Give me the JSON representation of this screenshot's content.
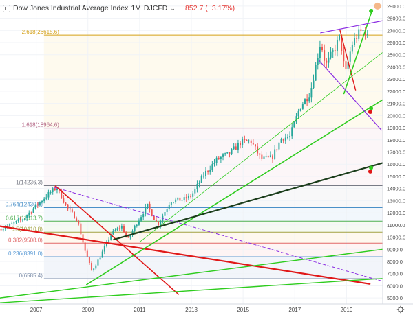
{
  "header": {
    "title": "Dow Jones Industrial Average Index",
    "interval": "1M",
    "symbol": "DJCFD",
    "change": "−852.7 (−3.17%)"
  },
  "colors": {
    "up": "#26a69a",
    "down": "#ef5350",
    "fib_1": "#787b86",
    "fib_0764": "#4a90c8",
    "fib_0618": "#4caf50",
    "fib_05": "#a0a040",
    "fib_0382": "#e06666",
    "fib_0236": "#5c9bd5",
    "fib_0": "#7e8faa",
    "fib_2618": "#d4a017",
    "fib_1618": "#b06080",
    "trend_red": "#e01818",
    "trend_green": "#2ecc1e",
    "trend_black": "#1b3d1b",
    "trend_purple": "#8a2be2",
    "marker_orange": "#f5b88a"
  },
  "chart_data": {
    "type": "candlestick",
    "title": "Dow Jones Industrial Average Index",
    "x_ticks": [
      "2007",
      "2009",
      "2011",
      "2013",
      "2015",
      "2017",
      "2019"
    ],
    "y_ticks": [
      "29000.0",
      "28000.0",
      "27000.0",
      "26000.0",
      "25000.0",
      "24000.0",
      "23000.0",
      "22000.0",
      "21000.0",
      "20000.0",
      "19000.0",
      "18000.0",
      "17000.0",
      "16000.0",
      "15000.0",
      "14000.0",
      "13000.0",
      "12000.0",
      "11000.0",
      "10000.0",
      "9000.0",
      "8000.0",
      "7000.0",
      "6000.0",
      "5000.0"
    ],
    "xlim": [
      2005.6,
      2020.4
    ],
    "ylim": [
      4500,
      29500
    ],
    "fib_levels": [
      {
        "label": "0(6585.4)",
        "value": 6585.4,
        "color_key": "fib_0"
      },
      {
        "label": "0.236(8391.0)",
        "value": 8391.0,
        "color_key": "fib_0236"
      },
      {
        "label": "0.382(9508.0)",
        "value": 9508.0,
        "color_key": "fib_0382"
      },
      {
        "label": "0.5(10410.8)",
        "value": 10410.8,
        "color_key": "fib_05"
      },
      {
        "label": "0.618(11313.7)",
        "value": 11313.7,
        "color_key": "fib_0618"
      },
      {
        "label": "0.764(12430.5)",
        "value": 12430.5,
        "color_key": "fib_0764"
      },
      {
        "label": "1(14236.3)",
        "value": 14236.3,
        "color_key": "fib_1"
      },
      {
        "label": "1.618(18964.6)",
        "value": 18964.6,
        "color_key": "fib_1618"
      },
      {
        "label": "2.618(26615.6)",
        "value": 26615.6,
        "color_key": "fib_2618"
      }
    ],
    "anchors": [
      [
        2005.6,
        10700
      ],
      [
        2006.0,
        11000
      ],
      [
        2006.5,
        11500
      ],
      [
        2007.0,
        12600
      ],
      [
        2007.5,
        13600
      ],
      [
        2007.8,
        14100
      ],
      [
        2008.2,
        12400
      ],
      [
        2008.6,
        11400
      ],
      [
        2008.9,
        8800
      ],
      [
        2009.15,
        7200
      ],
      [
        2009.5,
        8500
      ],
      [
        2009.9,
        10300
      ],
      [
        2010.3,
        10900
      ],
      [
        2010.55,
        9800
      ],
      [
        2010.9,
        11200
      ],
      [
        2011.3,
        12600
      ],
      [
        2011.7,
        11000
      ],
      [
        2012.2,
        13000
      ],
      [
        2012.7,
        13100
      ],
      [
        2013.0,
        13400
      ],
      [
        2013.5,
        15200
      ],
      [
        2014.0,
        16400
      ],
      [
        2014.5,
        16900
      ],
      [
        2014.9,
        17800
      ],
      [
        2015.3,
        17900
      ],
      [
        2015.7,
        16400
      ],
      [
        2016.1,
        16500
      ],
      [
        2016.5,
        18200
      ],
      [
        2016.8,
        18200
      ],
      [
        2017.2,
        20700
      ],
      [
        2017.6,
        21900
      ],
      [
        2018.0,
        26100
      ],
      [
        2018.2,
        24100
      ],
      [
        2018.5,
        25300
      ],
      [
        2018.75,
        26500
      ],
      [
        2018.95,
        23300
      ],
      [
        2019.2,
        25800
      ],
      [
        2019.45,
        26700
      ],
      [
        2019.7,
        27100
      ],
      [
        2019.85,
        26100
      ]
    ],
    "trendlines": [
      {
        "name": "red-down-1",
        "from": [
          2007.75,
          14200
        ],
        "to": [
          2012.5,
          5300
        ],
        "color_key": "trend_red",
        "width": 1.6
      },
      {
        "name": "red-down-2",
        "from": [
          2005.6,
          10900
        ],
        "to": [
          2019.9,
          6150
        ],
        "color_key": "trend_red",
        "width": 2.2
      },
      {
        "name": "red-down-3",
        "from": [
          2018.75,
          27000
        ],
        "to": [
          2019.35,
          22100
        ],
        "color_key": "trend_red",
        "width": 1.4
      },
      {
        "name": "purple-dashed",
        "from": [
          2007.7,
          14100
        ],
        "to": [
          2020.35,
          6400
        ],
        "color_key": "trend_purple",
        "width": 1,
        "dashed": true
      },
      {
        "name": "green-steep",
        "from": [
          2008.95,
          6100
        ],
        "to": [
          2020.4,
          21300
        ],
        "color_key": "trend_green",
        "width": 1.6
      },
      {
        "name": "green-thin",
        "from": [
          2011.0,
          9600
        ],
        "to": [
          2020.4,
          25200
        ],
        "color_key": "trend_green",
        "width": 0.8
      },
      {
        "name": "green-low-1",
        "from": [
          2005.6,
          5000
        ],
        "to": [
          2020.4,
          9000
        ],
        "color_key": "trend_green",
        "width": 1.4
      },
      {
        "name": "green-low-2",
        "from": [
          2005.6,
          4600
        ],
        "to": [
          2020.4,
          6600
        ],
        "color_key": "trend_green",
        "width": 1.4
      },
      {
        "name": "green-rally",
        "from": [
          2018.9,
          21800
        ],
        "to": [
          2020.0,
          28700
        ],
        "color_key": "trend_green",
        "width": 1.6
      },
      {
        "name": "black-long",
        "from": [
          2010.0,
          9800
        ],
        "to": [
          2020.4,
          16100
        ],
        "color_key": "trend_black",
        "width": 2.2
      },
      {
        "name": "purple-upper",
        "from": [
          2018.0,
          26800
        ],
        "to": [
          2020.4,
          27800
        ],
        "color_key": "trend_purple",
        "width": 1.2
      },
      {
        "name": "purple-lower",
        "from": [
          2017.95,
          24500
        ],
        "to": [
          2020.35,
          18800
        ],
        "color_key": "trend_purple",
        "width": 1.2
      }
    ],
    "markers": [
      {
        "name": "green-dot-top",
        "at": [
          2019.95,
          28600
        ],
        "color_key": "trend_green"
      },
      {
        "name": "green-dot-mid",
        "at": [
          2019.95,
          20600
        ],
        "color_key": "trend_green"
      },
      {
        "name": "red-dot-mid",
        "at": [
          2019.92,
          20300
        ],
        "color_key": "trend_red"
      },
      {
        "name": "green-dot-low",
        "at": [
          2019.95,
          15700
        ],
        "color_key": "trend_green"
      },
      {
        "name": "red-dot-low",
        "at": [
          2019.92,
          15400
        ],
        "color_key": "trend_red"
      },
      {
        "name": "orange-marker",
        "at": [
          2020.2,
          29000
        ],
        "color_key": "marker_orange"
      }
    ]
  }
}
